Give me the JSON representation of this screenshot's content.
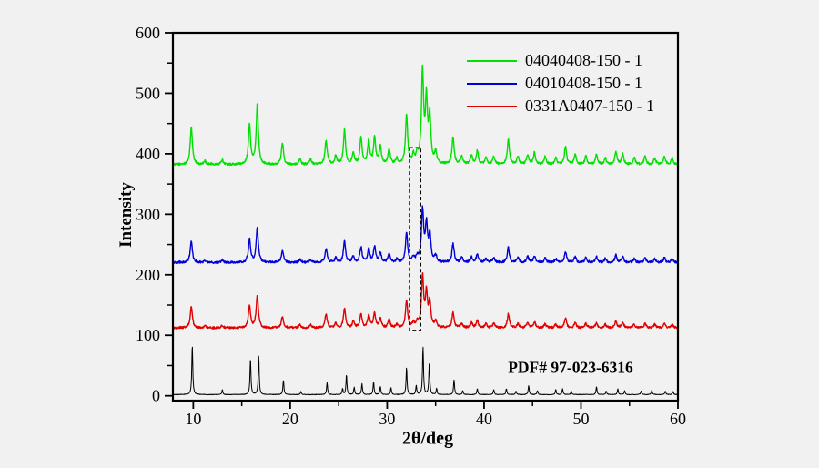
{
  "colors": {
    "background": "#f1f1f1",
    "frame": "#000000",
    "highlight_box": "#000000"
  },
  "chart_data": {
    "type": "line",
    "title": "",
    "xlabel": "2θ/deg",
    "ylabel": "Intensity",
    "annotation": "PDF# 97-023-6316",
    "xlim": [
      7.9,
      60
    ],
    "ylim": [
      -8,
      600
    ],
    "x_major_ticks": [
      10,
      20,
      30,
      40,
      50,
      60
    ],
    "x_minor_ticks": [
      15,
      25,
      35,
      45,
      55
    ],
    "y_major_ticks": [
      0,
      100,
      200,
      300,
      400,
      500,
      600
    ],
    "y_minor_ticks": [
      50,
      150,
      250,
      350,
      450,
      550
    ],
    "grid": false,
    "legend_position": "top-right-inside",
    "highlight_box": {
      "x1": 32.3,
      "x2": 33.45,
      "y1": 108,
      "y2": 410
    },
    "series": [
      {
        "name": "04040408-150 - 1",
        "color": "#00e000",
        "baseline": 382,
        "amplitude": 150,
        "peak_width": 0.13,
        "noise": 1.8,
        "in_legend": true,
        "peaks": [
          [
            9.8,
            0.42
          ],
          [
            11.2,
            0.04
          ],
          [
            13.0,
            0.05
          ],
          [
            15.8,
            0.44
          ],
          [
            16.6,
            0.66
          ],
          [
            19.2,
            0.24
          ],
          [
            21.0,
            0.06
          ],
          [
            22.1,
            0.06
          ],
          [
            23.7,
            0.27
          ],
          [
            24.7,
            0.09
          ],
          [
            25.6,
            0.38
          ],
          [
            26.5,
            0.12
          ],
          [
            27.3,
            0.29
          ],
          [
            28.1,
            0.26
          ],
          [
            28.7,
            0.29
          ],
          [
            29.3,
            0.19
          ],
          [
            30.2,
            0.17
          ],
          [
            31.0,
            0.06
          ],
          [
            32.0,
            0.55
          ],
          [
            32.7,
            0.09
          ],
          [
            33.1,
            0.1
          ],
          [
            33.65,
            1.0
          ],
          [
            34.05,
            0.68
          ],
          [
            34.4,
            0.5
          ],
          [
            35.0,
            0.13
          ],
          [
            36.8,
            0.3
          ],
          [
            37.7,
            0.09
          ],
          [
            38.7,
            0.1
          ],
          [
            39.3,
            0.15
          ],
          [
            40.2,
            0.08
          ],
          [
            41.0,
            0.09
          ],
          [
            42.5,
            0.28
          ],
          [
            43.5,
            0.09
          ],
          [
            44.5,
            0.11
          ],
          [
            45.2,
            0.13
          ],
          [
            46.3,
            0.09
          ],
          [
            47.4,
            0.07
          ],
          [
            48.4,
            0.2
          ],
          [
            49.4,
            0.11
          ],
          [
            50.5,
            0.09
          ],
          [
            51.6,
            0.11
          ],
          [
            52.5,
            0.07
          ],
          [
            53.6,
            0.14
          ],
          [
            54.3,
            0.12
          ],
          [
            55.5,
            0.07
          ],
          [
            56.6,
            0.09
          ],
          [
            57.6,
            0.07
          ],
          [
            58.6,
            0.09
          ],
          [
            59.4,
            0.07
          ]
        ]
      },
      {
        "name": "04010408-150 - 1",
        "color": "#0000d8",
        "baseline": 220,
        "amplitude": 86,
        "peak_width": 0.13,
        "noise": 1.8,
        "in_legend": true,
        "peaks": [
          [
            9.8,
            0.42
          ],
          [
            11.2,
            0.04
          ],
          [
            13.0,
            0.05
          ],
          [
            15.8,
            0.45
          ],
          [
            16.6,
            0.68
          ],
          [
            19.2,
            0.24
          ],
          [
            21.0,
            0.06
          ],
          [
            22.1,
            0.06
          ],
          [
            23.7,
            0.28
          ],
          [
            24.7,
            0.09
          ],
          [
            25.6,
            0.4
          ],
          [
            26.5,
            0.12
          ],
          [
            27.3,
            0.29
          ],
          [
            28.1,
            0.26
          ],
          [
            28.7,
            0.3
          ],
          [
            29.3,
            0.19
          ],
          [
            30.2,
            0.17
          ],
          [
            31.0,
            0.06
          ],
          [
            32.0,
            0.58
          ],
          [
            32.7,
            0.09
          ],
          [
            33.1,
            0.1
          ],
          [
            33.65,
            1.0
          ],
          [
            34.05,
            0.7
          ],
          [
            34.4,
            0.52
          ],
          [
            35.0,
            0.13
          ],
          [
            36.8,
            0.36
          ],
          [
            37.7,
            0.09
          ],
          [
            38.7,
            0.1
          ],
          [
            39.3,
            0.16
          ],
          [
            40.2,
            0.08
          ],
          [
            41.0,
            0.09
          ],
          [
            42.5,
            0.29
          ],
          [
            43.5,
            0.09
          ],
          [
            44.5,
            0.11
          ],
          [
            45.2,
            0.13
          ],
          [
            46.3,
            0.09
          ],
          [
            47.4,
            0.07
          ],
          [
            48.4,
            0.21
          ],
          [
            49.4,
            0.11
          ],
          [
            50.5,
            0.09
          ],
          [
            51.6,
            0.11
          ],
          [
            52.5,
            0.07
          ],
          [
            53.6,
            0.14
          ],
          [
            54.3,
            0.12
          ],
          [
            55.5,
            0.07
          ],
          [
            56.6,
            0.09
          ],
          [
            57.6,
            0.07
          ],
          [
            58.6,
            0.09
          ],
          [
            59.4,
            0.07
          ]
        ]
      },
      {
        "name": "0331A0407-150 - 1",
        "color": "#e00000",
        "baseline": 112,
        "amplitude": 84,
        "peak_width": 0.13,
        "noise": 1.7,
        "in_legend": true,
        "peaks": [
          [
            9.8,
            0.42
          ],
          [
            11.2,
            0.04
          ],
          [
            13.0,
            0.05
          ],
          [
            15.8,
            0.44
          ],
          [
            16.6,
            0.64
          ],
          [
            19.2,
            0.23
          ],
          [
            21.0,
            0.06
          ],
          [
            22.1,
            0.06
          ],
          [
            23.7,
            0.27
          ],
          [
            24.7,
            0.09
          ],
          [
            25.6,
            0.38
          ],
          [
            26.5,
            0.12
          ],
          [
            27.3,
            0.28
          ],
          [
            28.1,
            0.25
          ],
          [
            28.7,
            0.29
          ],
          [
            29.3,
            0.18
          ],
          [
            30.2,
            0.16
          ],
          [
            31.0,
            0.06
          ],
          [
            32.0,
            0.54
          ],
          [
            32.7,
            0.09
          ],
          [
            33.1,
            0.1
          ],
          [
            33.65,
            1.0
          ],
          [
            34.05,
            0.66
          ],
          [
            34.4,
            0.48
          ],
          [
            35.0,
            0.12
          ],
          [
            36.8,
            0.3
          ],
          [
            37.7,
            0.08
          ],
          [
            38.7,
            0.1
          ],
          [
            39.3,
            0.15
          ],
          [
            40.2,
            0.08
          ],
          [
            41.0,
            0.09
          ],
          [
            42.5,
            0.27
          ],
          [
            43.5,
            0.09
          ],
          [
            44.5,
            0.1
          ],
          [
            45.2,
            0.12
          ],
          [
            46.3,
            0.08
          ],
          [
            47.4,
            0.07
          ],
          [
            48.4,
            0.19
          ],
          [
            49.4,
            0.1
          ],
          [
            50.5,
            0.08
          ],
          [
            51.6,
            0.1
          ],
          [
            52.5,
            0.07
          ],
          [
            53.6,
            0.13
          ],
          [
            54.3,
            0.11
          ],
          [
            55.5,
            0.07
          ],
          [
            56.6,
            0.08
          ],
          [
            57.6,
            0.07
          ],
          [
            58.6,
            0.08
          ],
          [
            59.4,
            0.07
          ]
        ]
      },
      {
        "name": "PDF# 97-023-6316",
        "color": "#000000",
        "baseline": 2,
        "amplitude": 82,
        "peak_width": 0.06,
        "noise": 0.45,
        "in_legend": false,
        "peaks": [
          [
            9.9,
            1.0
          ],
          [
            13.0,
            0.1
          ],
          [
            15.9,
            0.72
          ],
          [
            16.75,
            0.78
          ],
          [
            19.3,
            0.3
          ],
          [
            21.1,
            0.06
          ],
          [
            23.8,
            0.24
          ],
          [
            25.4,
            0.12
          ],
          [
            25.8,
            0.4
          ],
          [
            26.6,
            0.15
          ],
          [
            27.4,
            0.22
          ],
          [
            28.6,
            0.26
          ],
          [
            29.3,
            0.17
          ],
          [
            30.4,
            0.14
          ],
          [
            32.0,
            0.55
          ],
          [
            33.0,
            0.18
          ],
          [
            33.7,
            0.95
          ],
          [
            34.35,
            0.65
          ],
          [
            35.1,
            0.12
          ],
          [
            36.9,
            0.3
          ],
          [
            37.8,
            0.08
          ],
          [
            39.3,
            0.12
          ],
          [
            41.0,
            0.1
          ],
          [
            42.3,
            0.12
          ],
          [
            43.3,
            0.07
          ],
          [
            44.6,
            0.18
          ],
          [
            45.5,
            0.08
          ],
          [
            47.4,
            0.1
          ],
          [
            48.1,
            0.12
          ],
          [
            49.0,
            0.07
          ],
          [
            51.6,
            0.16
          ],
          [
            52.6,
            0.07
          ],
          [
            53.8,
            0.12
          ],
          [
            54.5,
            0.08
          ],
          [
            56.2,
            0.07
          ],
          [
            57.3,
            0.09
          ],
          [
            58.7,
            0.07
          ],
          [
            59.5,
            0.06
          ]
        ]
      }
    ]
  }
}
